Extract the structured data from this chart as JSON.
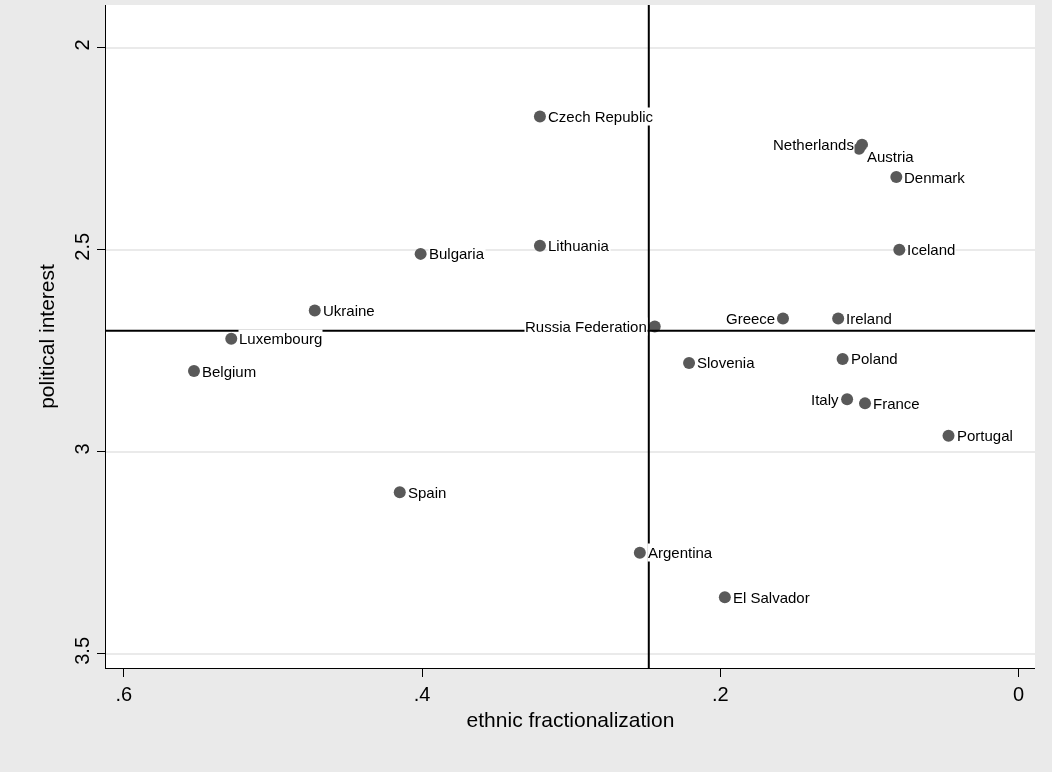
{
  "chart_data": {
    "type": "scatter",
    "xlabel": "ethnic fractionalization",
    "ylabel": "political interest",
    "x": [
      0.321,
      0.105,
      0.107,
      0.082,
      0.321,
      0.401,
      0.08,
      0.472,
      0.244,
      0.158,
      0.121,
      0.528,
      0.553,
      0.221,
      0.118,
      0.115,
      0.103,
      0.047,
      0.415,
      0.254,
      0.197
    ],
    "values": [
      2.17,
      2.24,
      2.25,
      2.32,
      2.49,
      2.51,
      2.5,
      2.65,
      2.69,
      2.67,
      2.67,
      2.72,
      2.8,
      2.78,
      2.77,
      2.87,
      2.88,
      2.96,
      3.1,
      3.25,
      3.36
    ],
    "value_labels": [
      "Czech Republic",
      "Netherlands",
      "Austria",
      "Denmark",
      "Lithuania",
      "Bulgaria",
      "Iceland",
      "Ukraine",
      "Russia Federation",
      "Greece",
      "Ireland",
      "Luxembourg",
      "Belgium",
      "Slovenia",
      "Poland",
      "Italy",
      "France",
      "Portugal",
      "Spain",
      "Argentina",
      "El Salvador"
    ],
    "color": "#595959",
    "marker": "circle",
    "xlim": [
      0.612,
      -0.011
    ],
    "xticks": [
      {
        "value": 0.6,
        "label": ".6"
      },
      {
        "value": 0.4,
        "label": ".4"
      },
      {
        "value": 0.2,
        "label": ".2"
      },
      0
    ],
    "ylim": [
      3.535,
      1.894
    ],
    "yticks": [
      2,
      2.5,
      3,
      3.5
    ],
    "grid": "y",
    "ref_lines": [
      {
        "axis": "x",
        "value": 0.248,
        "color": "#000000"
      },
      {
        "axis": "y",
        "value": 2.7,
        "color": "#000000"
      }
    ]
  }
}
